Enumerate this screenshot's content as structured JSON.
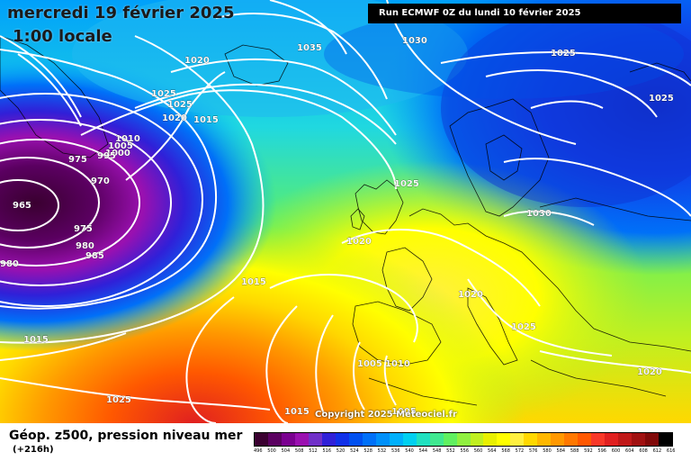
{
  "header": {
    "date": "mercredi 19 février 2025",
    "time": "1:00 locale",
    "run": "Run ECMWF 0Z du lundi 10 février 2025"
  },
  "footer": {
    "title": "Géop. z500, pression niveau mer",
    "lead": "(+216h)",
    "copyright": "Copyright 2025 Meteociel.fr"
  },
  "isobar_labels": [
    "1035",
    "1030",
    "1025",
    "1020",
    "1025",
    "1025",
    "1020",
    "1015",
    "1010",
    "1005",
    "1000",
    "995",
    "975",
    "970",
    "965",
    "975",
    "980",
    "985",
    "980",
    "1025",
    "1030",
    "1020",
    "1015",
    "1025",
    "1020",
    "1025",
    "1015",
    "1005",
    "1010",
    "1025",
    "1015",
    "1005",
    "1020"
  ],
  "scale": {
    "labels": [
      "496",
      "500",
      "504",
      "508",
      "512",
      "516",
      "520",
      "524",
      "528",
      "532",
      "536",
      "540",
      "544",
      "548",
      "552",
      "556",
      "560",
      "564",
      "568",
      "572",
      "576",
      "580",
      "584",
      "588",
      "592",
      "596",
      "600",
      "604",
      "608",
      "612",
      "616"
    ],
    "colors": [
      "#3a0030",
      "#5a0060",
      "#7a0090",
      "#9a10b0",
      "#7030c8",
      "#3020d8",
      "#1030e8",
      "#0050f0",
      "#0070f8",
      "#0090fa",
      "#00b0fc",
      "#00d0f0",
      "#20e0c0",
      "#40e890",
      "#60f060",
      "#90f040",
      "#c0f020",
      "#e8f000",
      "#ffff00",
      "#fff040",
      "#ffd800",
      "#ffb800",
      "#ff9800",
      "#ff7800",
      "#ff5800",
      "#f83828",
      "#e02020",
      "#c01818",
      "#a01010",
      "#800808",
      "#000000"
    ]
  }
}
